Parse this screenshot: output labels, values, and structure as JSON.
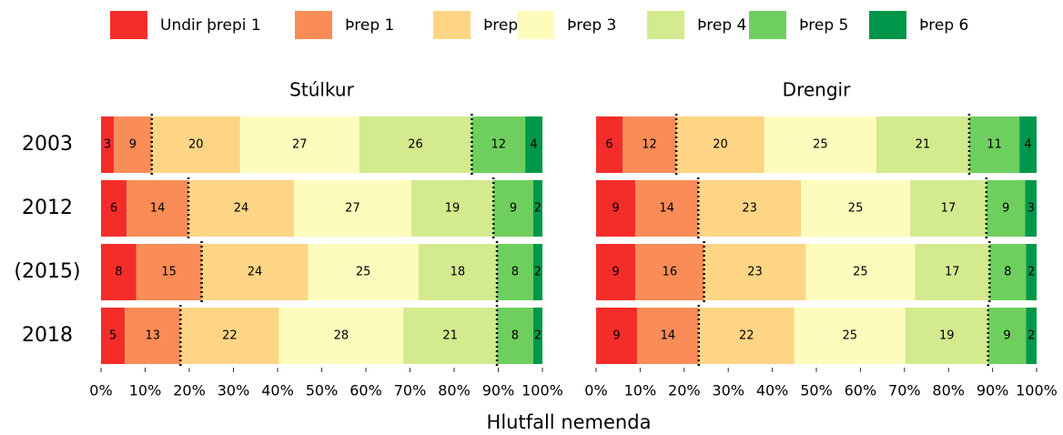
{
  "chart_data": {
    "type": "bar",
    "orientation": "horizontal",
    "stacked": true,
    "categories": [
      "2003",
      "2012",
      "(2015)",
      "2018"
    ],
    "series": [
      {
        "name": "Undir þrepi 1",
        "color": "#f52d2a"
      },
      {
        "name": "Þrep 1",
        "color": "#fa8c57"
      },
      {
        "name": "Þrep 2",
        "color": "#fdd584"
      },
      {
        "name": "Þrep 3",
        "color": "#fefcbd"
      },
      {
        "name": "Þrep 4",
        "color": "#d3ea8f"
      },
      {
        "name": "Þrep 5",
        "color": "#6fcf5e"
      },
      {
        "name": "Þrep 6",
        "color": "#00974a"
      }
    ],
    "panels": [
      {
        "title": "Stúlkur",
        "series": [
          {
            "values": [
              2.9,
              5.8,
              8.0,
              5.4
            ],
            "value_labels": [
              "3",
              "6",
              "8",
              "5"
            ]
          },
          {
            "values": [
              8.6,
              14.0,
              14.8,
              12.6
            ],
            "value_labels": [
              "9",
              "14",
              "15",
              "13"
            ]
          },
          {
            "values": [
              20.0,
              23.9,
              24.1,
              22.3
            ],
            "value_labels": [
              "20",
              "24",
              "24",
              "22"
            ]
          },
          {
            "values": [
              27.0,
              26.6,
              25.0,
              28.2
            ],
            "value_labels": [
              "27",
              "27",
              "25",
              "28"
            ]
          },
          {
            "values": [
              25.5,
              18.6,
              17.8,
              21.2
            ],
            "value_labels": [
              "26",
              "19",
              "18",
              "21"
            ]
          },
          {
            "values": [
              12.1,
              9.0,
              8.2,
              8.2
            ],
            "value_labels": [
              "12",
              "9",
              "8",
              "8"
            ]
          },
          {
            "values": [
              3.9,
              2.1,
              2.1,
              2.1
            ],
            "value_labels": [
              "4",
              "2",
              "2",
              "2"
            ]
          }
        ]
      },
      {
        "title": "Drengir",
        "series": [
          {
            "values": [
              6.0,
              8.9,
              8.9,
              9.3
            ],
            "value_labels": [
              "6",
              "9",
              "9",
              "9"
            ]
          },
          {
            "values": [
              12.2,
              14.3,
              15.6,
              14.0
            ],
            "value_labels": [
              "12",
              "14",
              "16",
              "14"
            ]
          },
          {
            "values": [
              20.0,
              23.3,
              23.1,
              21.7
            ],
            "value_labels": [
              "20",
              "23",
              "23",
              "22"
            ]
          },
          {
            "values": [
              25.4,
              24.8,
              24.8,
              25.2
            ],
            "value_labels": [
              "25",
              "25",
              "25",
              "25"
            ]
          },
          {
            "values": [
              21.1,
              17.3,
              16.9,
              18.8
            ],
            "value_labels": [
              "21",
              "17",
              "17",
              "19"
            ]
          },
          {
            "values": [
              11.4,
              8.8,
              8.3,
              8.6
            ],
            "value_labels": [
              "11",
              "9",
              "8",
              "9"
            ]
          },
          {
            "values": [
              3.9,
              2.6,
              2.4,
              2.4
            ],
            "value_labels": [
              "4",
              "3",
              "2",
              "2"
            ]
          }
        ]
      }
    ],
    "xlim": [
      0,
      100
    ],
    "xticks": [
      {
        "value": 0,
        "label": "0%"
      },
      {
        "value": 10,
        "label": "10%"
      },
      {
        "value": 20,
        "label": "20%"
      },
      {
        "value": 30,
        "label": "30%"
      },
      {
        "value": 40,
        "label": "40%"
      },
      {
        "value": 50,
        "label": "50%"
      },
      {
        "value": 60,
        "label": "60%"
      },
      {
        "value": 70,
        "label": "70%"
      },
      {
        "value": 80,
        "label": "80%"
      },
      {
        "value": 90,
        "label": "90%"
      },
      {
        "value": 100,
        "label": "100%"
      }
    ],
    "xlabel": "Hlutfall nemenda"
  }
}
